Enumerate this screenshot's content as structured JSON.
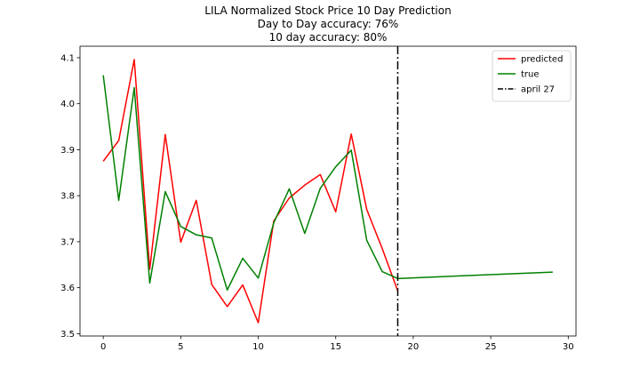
{
  "chart_data": {
    "type": "line",
    "title_lines": [
      "LILA Normalized Stock Price 10 Day Prediction",
      "Day to Day accuracy: 76%",
      "10 day accuracy: 80%"
    ],
    "xlabel": "",
    "ylabel": "",
    "xlim": [
      -1.5,
      30.5
    ],
    "ylim": [
      3.495,
      4.125
    ],
    "x_ticks": [
      0,
      5,
      10,
      15,
      20,
      25,
      30
    ],
    "y_ticks": [
      3.5,
      3.6,
      3.7,
      3.8,
      3.9,
      4.0,
      4.1
    ],
    "y_tick_labels": [
      "3.5",
      "3.6",
      "3.7",
      "3.8",
      "3.9",
      "4.0",
      "4.1"
    ],
    "grid": false,
    "legend_position": "top-right",
    "series": [
      {
        "name": "predicted",
        "color": "#ff0000",
        "x": [
          0,
          1,
          2,
          3,
          4,
          5,
          6,
          7,
          8,
          9,
          10,
          11,
          12,
          13,
          14,
          15,
          16,
          17,
          18,
          19
        ],
        "y": [
          3.875,
          3.92,
          4.096,
          3.64,
          3.933,
          3.699,
          3.79,
          3.607,
          3.559,
          3.606,
          3.524,
          3.745,
          3.795,
          3.823,
          3.846,
          3.765,
          3.934,
          3.77,
          3.685,
          3.593
        ]
      },
      {
        "name": "true",
        "color": "#008000",
        "x": [
          0,
          1,
          2,
          3,
          4,
          5,
          6,
          7,
          8,
          9,
          10,
          11,
          12,
          13,
          14,
          15,
          16,
          17,
          18,
          19,
          29
        ],
        "y": [
          4.062,
          3.79,
          4.035,
          3.61,
          3.809,
          3.733,
          3.715,
          3.708,
          3.595,
          3.664,
          3.621,
          3.741,
          3.815,
          3.718,
          3.816,
          3.863,
          3.899,
          3.703,
          3.635,
          3.62,
          3.634
        ]
      }
    ],
    "vertical_lines": [
      {
        "name": "april 27",
        "x": 19,
        "color": "#000000",
        "style": "dashdot"
      }
    ]
  }
}
